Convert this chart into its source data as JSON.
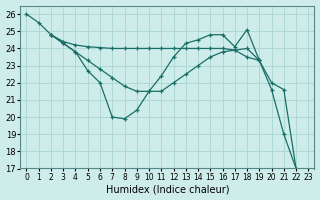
{
  "xlabel": "Humidex (Indice chaleur)",
  "background_color": "#ceecea",
  "grid_color": "#aed8d4",
  "line_color": "#1a6e68",
  "xlim": [
    -0.5,
    23.5
  ],
  "ylim": [
    17,
    26.5
  ],
  "yticks": [
    17,
    18,
    19,
    20,
    21,
    22,
    23,
    24,
    25,
    26
  ],
  "xticks": [
    0,
    1,
    2,
    3,
    4,
    5,
    6,
    7,
    8,
    9,
    10,
    11,
    12,
    13,
    14,
    15,
    16,
    17,
    18,
    19,
    20,
    21,
    22,
    23
  ],
  "line1_x": [
    0,
    1,
    2,
    3,
    4,
    5,
    6,
    7,
    8,
    9,
    10,
    11,
    12,
    13,
    14,
    15,
    16,
    17,
    18,
    19,
    20,
    21,
    22
  ],
  "line1_y": [
    26.0,
    25.5,
    24.8,
    24.3,
    23.8,
    22.7,
    22.0,
    20.0,
    19.9,
    20.4,
    21.5,
    22.4,
    23.5,
    24.3,
    24.5,
    24.8,
    24.8,
    24.1,
    25.1,
    23.3,
    21.6,
    19.0,
    17.0
  ],
  "line2_x": [
    2,
    3,
    4,
    5,
    6,
    7,
    8,
    9,
    10,
    11,
    12,
    13,
    14,
    15,
    16,
    17,
    18,
    19
  ],
  "line2_y": [
    24.8,
    24.4,
    24.2,
    24.1,
    24.05,
    24.0,
    24.0,
    24.0,
    24.0,
    24.0,
    24.0,
    24.0,
    24.0,
    24.0,
    24.0,
    23.9,
    23.5,
    23.3
  ],
  "line3_x": [
    2,
    3,
    4,
    5,
    6,
    7,
    8,
    9,
    10,
    11,
    12,
    13,
    14,
    15,
    16,
    17,
    18,
    19,
    20,
    21,
    22
  ],
  "line3_y": [
    24.8,
    24.3,
    23.8,
    23.3,
    22.8,
    22.3,
    21.8,
    21.5,
    21.5,
    21.5,
    22.0,
    22.5,
    23.0,
    23.5,
    23.8,
    23.9,
    24.0,
    23.3,
    22.0,
    21.6,
    17.0
  ]
}
